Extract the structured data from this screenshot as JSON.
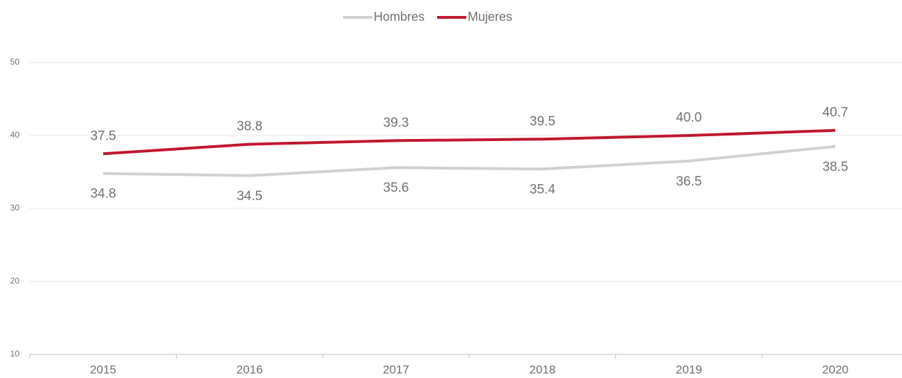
{
  "chart_data": {
    "type": "line",
    "categories": [
      "2015",
      "2016",
      "2017",
      "2018",
      "2019",
      "2020"
    ],
    "series": [
      {
        "name": "Hombres",
        "color": "#d0d0d0",
        "values": [
          34.8,
          34.5,
          35.6,
          35.4,
          36.5,
          38.5
        ],
        "value_labels": [
          "34.8",
          "34.5",
          "35.6",
          "35.4",
          "36.5",
          "38.5"
        ]
      },
      {
        "name": "Mujeres",
        "color": "#c0172d",
        "values": [
          37.5,
          38.8,
          39.3,
          39.5,
          40.0,
          40.7
        ],
        "value_labels": [
          "37.5",
          "38.8",
          "39.3",
          "39.5",
          "40.0",
          "40.7"
        ]
      }
    ],
    "ylim": [
      10,
      50
    ],
    "yticks": [
      10,
      20,
      30,
      40,
      50
    ],
    "grid": true,
    "legend": "top"
  }
}
